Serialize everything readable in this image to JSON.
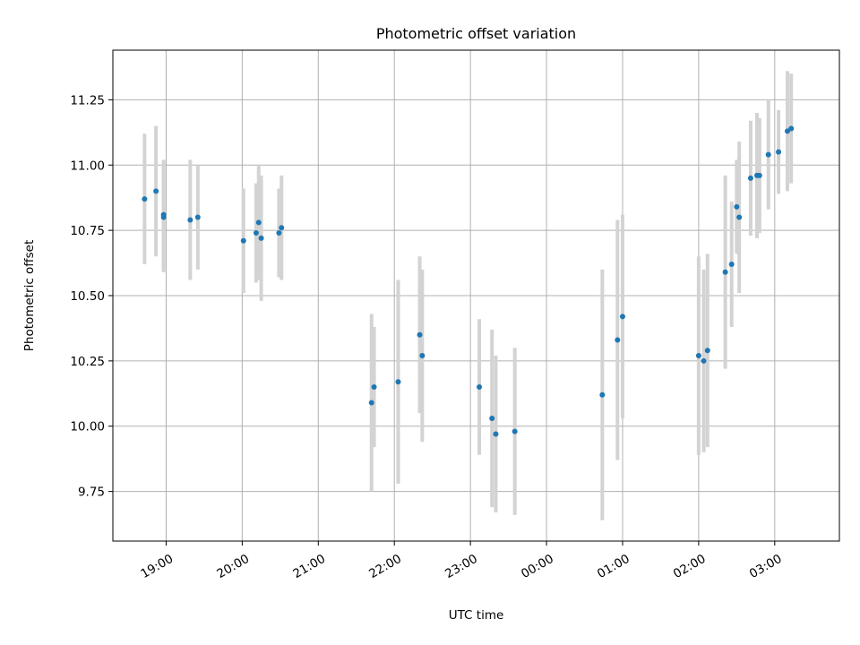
{
  "chart_data": {
    "type": "scatter",
    "title": "Photometric offset variation",
    "xlabel": "UTC time",
    "ylabel": "Photometric offset",
    "xlim": [
      "18:18",
      "03:51"
    ],
    "ylim": [
      9.56,
      11.44
    ],
    "grid": true,
    "x_ticks": [
      "19:00",
      "20:00",
      "21:00",
      "22:00",
      "23:00",
      "00:00",
      "01:00",
      "02:00",
      "03:00"
    ],
    "y_ticks": [
      "9.75",
      "10.00",
      "10.25",
      "10.50",
      "10.75",
      "11.00",
      "11.25"
    ],
    "colors": {
      "points": "#1f77b4",
      "errorbars": "#d3d3d3",
      "grid": "#b0b0b0"
    },
    "points": [
      {
        "x": "18:43",
        "y": 10.87,
        "yerr": 0.25
      },
      {
        "x": "18:52",
        "y": 10.9,
        "yerr": 0.25
      },
      {
        "x": "18:58",
        "y": 10.81,
        "yerr": 0.21
      },
      {
        "x": "18:58",
        "y": 10.8,
        "yerr": 0.21
      },
      {
        "x": "19:19",
        "y": 10.79,
        "yerr": 0.23
      },
      {
        "x": "19:25",
        "y": 10.8,
        "yerr": 0.2
      },
      {
        "x": "20:01",
        "y": 10.71,
        "yerr": 0.2
      },
      {
        "x": "20:11",
        "y": 10.74,
        "yerr": 0.19
      },
      {
        "x": "20:13",
        "y": 10.78,
        "yerr": 0.22
      },
      {
        "x": "20:15",
        "y": 10.72,
        "yerr": 0.24
      },
      {
        "x": "20:29",
        "y": 10.74,
        "yerr": 0.17
      },
      {
        "x": "20:31",
        "y": 10.76,
        "yerr": 0.2
      },
      {
        "x": "21:42",
        "y": 10.09,
        "yerr": 0.34
      },
      {
        "x": "21:44",
        "y": 10.15,
        "yerr": 0.23
      },
      {
        "x": "22:03",
        "y": 10.17,
        "yerr": 0.39
      },
      {
        "x": "22:20",
        "y": 10.35,
        "yerr": 0.3
      },
      {
        "x": "22:22",
        "y": 10.27,
        "yerr": 0.33
      },
      {
        "x": "23:07",
        "y": 10.15,
        "yerr": 0.26
      },
      {
        "x": "23:17",
        "y": 10.03,
        "yerr": 0.34
      },
      {
        "x": "23:20",
        "y": 9.97,
        "yerr": 0.3
      },
      {
        "x": "23:35",
        "y": 9.98,
        "yerr": 0.32
      },
      {
        "x": "00:44",
        "y": 10.12,
        "yerr": 0.48
      },
      {
        "x": "00:56",
        "y": 10.33,
        "yerr": 0.46
      },
      {
        "x": "01:00",
        "y": 10.42,
        "yerr": 0.39
      },
      {
        "x": "02:00",
        "y": 10.27,
        "yerr": 0.38
      },
      {
        "x": "02:04",
        "y": 10.25,
        "yerr": 0.35
      },
      {
        "x": "02:07",
        "y": 10.29,
        "yerr": 0.37
      },
      {
        "x": "02:21",
        "y": 10.59,
        "yerr": 0.37
      },
      {
        "x": "02:26",
        "y": 10.62,
        "yerr": 0.24
      },
      {
        "x": "02:30",
        "y": 10.84,
        "yerr": 0.18
      },
      {
        "x": "02:32",
        "y": 10.8,
        "yerr": 0.29
      },
      {
        "x": "02:41",
        "y": 10.95,
        "yerr": 0.22
      },
      {
        "x": "02:46",
        "y": 10.96,
        "yerr": 0.24
      },
      {
        "x": "02:48",
        "y": 10.96,
        "yerr": 0.22
      },
      {
        "x": "02:55",
        "y": 11.04,
        "yerr": 0.21
      },
      {
        "x": "03:03",
        "y": 11.05,
        "yerr": 0.16
      },
      {
        "x": "03:10",
        "y": 11.13,
        "yerr": 0.23
      },
      {
        "x": "03:13",
        "y": 11.14,
        "yerr": 0.21
      }
    ]
  }
}
